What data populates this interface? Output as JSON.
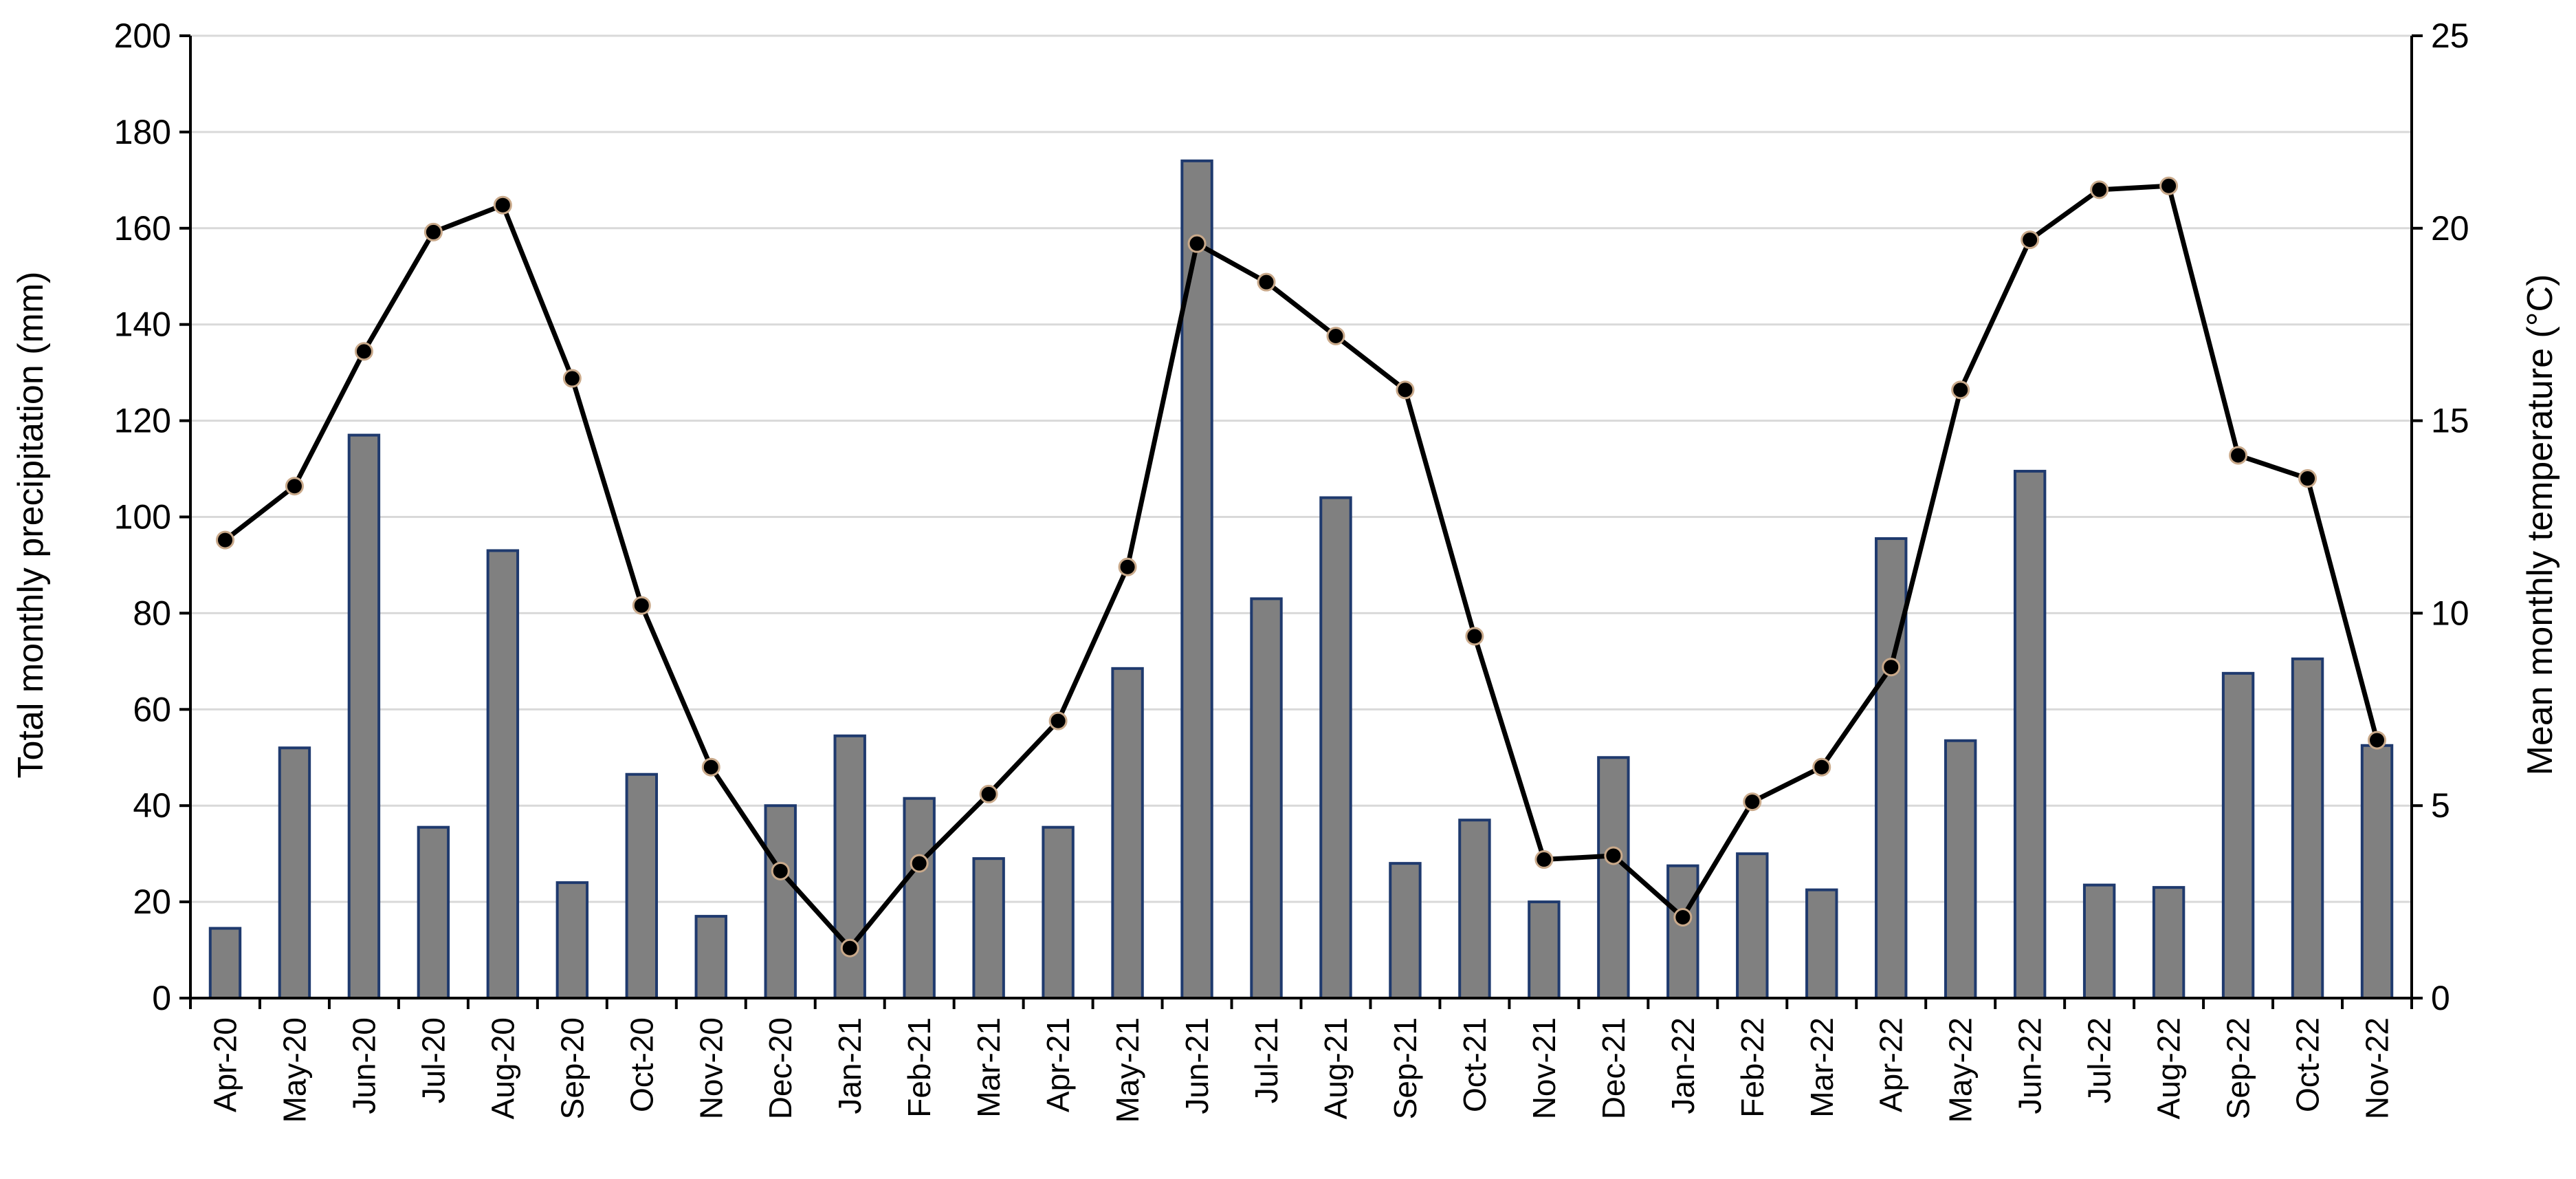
{
  "chart_data": {
    "type": "bar+line",
    "title": "",
    "categories": [
      "Apr-20",
      "May-20",
      "Jun-20",
      "Jul-20",
      "Aug-20",
      "Sep-20",
      "Oct-20",
      "Nov-20",
      "Dec-20",
      "Jan-21",
      "Feb-21",
      "Mar-21",
      "Apr-21",
      "May-21",
      "Jun-21",
      "Jul-21",
      "Aug-21",
      "Sep-21",
      "Oct-21",
      "Nov-21",
      "Dec-21",
      "Jan-22",
      "Feb-22",
      "Mar-22",
      "Apr-22",
      "May-22",
      "Jun-22",
      "Jul-22",
      "Aug-22",
      "Sep-22",
      "Oct-22",
      "Nov-22"
    ],
    "series": [
      {
        "type": "bar",
        "axis": "left",
        "color": "#808080",
        "edge_color": "#1f3a6e",
        "values": [
          14.5,
          52,
          117,
          35.5,
          93,
          24,
          46.5,
          17,
          40,
          54.5,
          41.5,
          29,
          35.5,
          68.5,
          174,
          83,
          104,
          28,
          37,
          20,
          50,
          27.5,
          30,
          22.5,
          95.5,
          53.5,
          109.5,
          23.5,
          23,
          67.5,
          70.5,
          52.5
        ]
      },
      {
        "type": "line",
        "axis": "right",
        "color": "#000000",
        "marker_fill": "#000000",
        "marker_edge": "#c9a98a",
        "values": [
          11.9,
          13.3,
          16.8,
          19.9,
          20.6,
          16.1,
          10.2,
          6.0,
          3.3,
          1.3,
          3.5,
          5.3,
          7.2,
          11.2,
          19.6,
          18.6,
          17.2,
          15.8,
          9.4,
          3.6,
          3.7,
          2.1,
          5.1,
          6.0,
          8.6,
          15.8,
          19.7,
          21.0,
          21.1,
          14.1,
          13.5,
          6.7
        ]
      }
    ],
    "ylabel": "Total monthly precipitation (mm)",
    "y2label": "Mean monthly temperature (°C)",
    "ylim": [
      0,
      200
    ],
    "y2lim": [
      0,
      25
    ],
    "yticks": [
      "0",
      "20",
      "40",
      "60",
      "80",
      "100",
      "120",
      "140",
      "160",
      "180",
      "200"
    ],
    "y2ticks": [
      "0",
      "5",
      "10",
      "15",
      "20",
      "25"
    ],
    "grid": true,
    "legend": "none"
  }
}
